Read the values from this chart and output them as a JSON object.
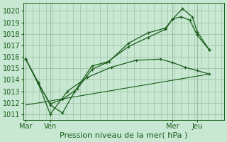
{
  "background_color": "#c8e8d4",
  "grid_color": "#99bb99",
  "line_color": "#1a5c1a",
  "xlabel": "Pression niveau de la mer( hPa )",
  "xlabel_fontsize": 8,
  "tick_fontsize": 7,
  "ylim": [
    1010.5,
    1020.7
  ],
  "yticks": [
    1011,
    1012,
    1013,
    1014,
    1015,
    1016,
    1017,
    1018,
    1019,
    1020
  ],
  "x_tick_labels": [
    "Mar",
    "Ven",
    "Mer",
    "Jeu"
  ],
  "x_tick_positions": [
    0,
    1,
    6,
    7
  ],
  "x_vlines": [
    0,
    1,
    6,
    7
  ],
  "xlim": [
    -0.1,
    8.1
  ],
  "series1_x": [
    0.0,
    0.5,
    1.0,
    1.5,
    2.0,
    2.7,
    3.4,
    4.2,
    5.0,
    5.7,
    6.0,
    6.4,
    6.8,
    7.0,
    7.5
  ],
  "series1_y": [
    1015.8,
    1013.8,
    1011.8,
    1011.1,
    1013.0,
    1015.2,
    1015.6,
    1017.2,
    1018.1,
    1018.5,
    1019.3,
    1020.2,
    1019.5,
    1018.2,
    1016.6
  ],
  "series2_x": [
    0.0,
    0.5,
    1.0,
    1.5,
    2.1,
    2.7,
    3.3,
    4.2,
    5.0,
    5.7,
    6.0,
    6.35,
    6.7,
    7.0,
    7.5
  ],
  "series2_y": [
    1015.8,
    1013.7,
    1011.9,
    1012.3,
    1013.2,
    1014.9,
    1015.5,
    1016.9,
    1017.7,
    1018.4,
    1019.3,
    1019.5,
    1019.2,
    1017.9,
    1016.6
  ],
  "series3_x": [
    0.0,
    0.5,
    1.0,
    1.7,
    2.5,
    3.5,
    4.5,
    5.5,
    6.0,
    6.5,
    7.0,
    7.5
  ],
  "series3_y": [
    1015.8,
    1013.7,
    1011.0,
    1013.0,
    1014.2,
    1015.1,
    1015.7,
    1015.8,
    1015.5,
    1015.1,
    1014.8,
    1014.5
  ],
  "series4_x": [
    0.0,
    7.5
  ],
  "series4_y": [
    1011.8,
    1014.5
  ]
}
